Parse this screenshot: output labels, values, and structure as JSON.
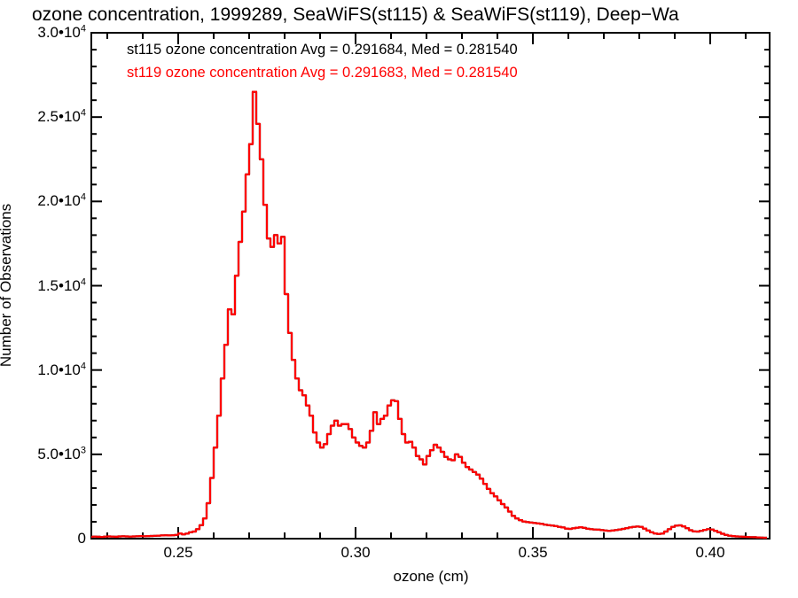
{
  "title": "ozone concentration, 1999289, SeaWiFS(st115) & SeaWiFS(st119), Deep−Wa",
  "legend": {
    "entries": [
      {
        "label": "st115 ozone concentration Avg = 0.291684, Med = 0.281540",
        "color": "#000000"
      },
      {
        "label": "st119 ozone concentration Avg = 0.291683, Med = 0.281540",
        "color": "#ff0000"
      }
    ]
  },
  "chart_data": {
    "type": "line",
    "subtype": "histogram-step",
    "title": "ozone concentration, 1999289, SeaWiFS(st115) & SeaWiFS(st119), Deep−Wa",
    "xlabel": "ozone (cm)",
    "ylabel": "Number of Observations",
    "grid": "off",
    "legend_position": "top-left-inside",
    "frame_color": "#000000",
    "x_axis": {
      "min": 0.2255,
      "max": 0.41675,
      "major_ticks": [
        0.25,
        0.3,
        0.35,
        0.4
      ],
      "major_tick_labels": [
        "0.25",
        "0.30",
        "0.35",
        "0.40"
      ],
      "minor_tick_step": 0.01
    },
    "y_axis": {
      "min": 0,
      "max": 30000,
      "major_tick_step": 5000,
      "minor_tick_step": 1000,
      "labels": [
        {
          "v": 0,
          "base": "0",
          "exp": ""
        },
        {
          "v": 5000,
          "base": "5.0•10",
          "exp": "3"
        },
        {
          "v": 10000,
          "base": "1.0•10",
          "exp": "4"
        },
        {
          "v": 15000,
          "base": "1.5•10",
          "exp": "4"
        },
        {
          "v": 20000,
          "base": "2.0•10",
          "exp": "4"
        },
        {
          "v": 25000,
          "base": "2.5•10",
          "exp": "4"
        },
        {
          "v": 30000,
          "base": "3.0•10",
          "exp": "4"
        }
      ]
    },
    "bins": {
      "x_start": 0.2255,
      "x_step": 0.001
    },
    "series": [
      {
        "name": "st115 ozone concentration",
        "color": "#000000",
        "avg": "0.291684",
        "med": "0.281540",
        "values": "shared"
      },
      {
        "name": "st119 ozone concentration",
        "color": "#ff0000",
        "avg": "0.291683",
        "med": "0.281540",
        "values": "shared"
      }
    ],
    "values": [
      110,
      120,
      110,
      100,
      120,
      130,
      120,
      110,
      130,
      140,
      130,
      120,
      130,
      140,
      150,
      140,
      150,
      160,
      170,
      180,
      190,
      200,
      190,
      200,
      220,
      310,
      260,
      300,
      380,
      420,
      560,
      800,
      1200,
      2100,
      3600,
      5400,
      7300,
      9500,
      11500,
      13600,
      13300,
      15600,
      17600,
      19400,
      21600,
      23400,
      26500,
      24600,
      22500,
      19800,
      17800,
      17300,
      18000,
      17500,
      17900,
      14500,
      12200,
      10600,
      9500,
      8800,
      8500,
      7900,
      7300,
      6300,
      5700,
      5400,
      5600,
      6200,
      6700,
      7000,
      6700,
      6800,
      6800,
      6500,
      6000,
      5700,
      5500,
      5400,
      5700,
      6400,
      7500,
      6800,
      7100,
      7300,
      7900,
      8200,
      8150,
      7100,
      6200,
      5700,
      5750,
      5400,
      4900,
      4700,
      4400,
      4900,
      5250,
      5570,
      5400,
      5150,
      4850,
      4700,
      4650,
      5000,
      4850,
      4500,
      4250,
      4100,
      3950,
      3800,
      3550,
      3250,
      2950,
      2700,
      2500,
      2280,
      2050,
      1850,
      1600,
      1350,
      1200,
      1100,
      1020,
      980,
      950,
      930,
      900,
      870,
      830,
      800,
      780,
      740,
      700,
      660,
      600,
      580,
      610,
      650,
      680,
      640,
      590,
      560,
      540,
      530,
      510,
      480,
      460,
      480,
      510,
      540,
      580,
      620,
      660,
      700,
      720,
      700,
      600,
      480,
      380,
      310,
      280,
      300,
      420,
      560,
      700,
      770,
      790,
      730,
      620,
      500,
      430,
      420,
      460,
      520,
      560,
      540,
      470,
      380,
      290,
      220,
      180,
      150,
      130,
      120,
      110,
      100,
      90,
      85,
      75,
      65,
      50
    ]
  }
}
